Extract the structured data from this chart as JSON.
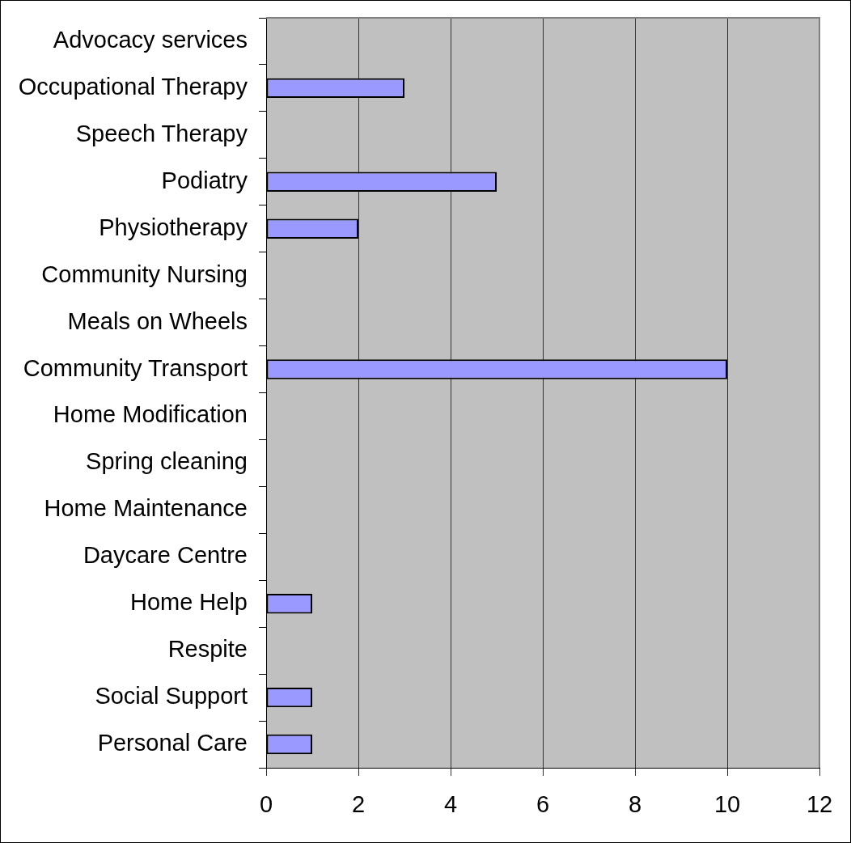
{
  "chart_data": {
    "type": "bar",
    "orientation": "horizontal",
    "categories": [
      "Advocacy services",
      "Occupational Therapy",
      "Speech Therapy",
      "Podiatry",
      "Physiotherapy",
      "Community Nursing",
      "Meals on Wheels",
      "Community Transport",
      "Home Modification",
      "Spring cleaning",
      "Home Maintenance",
      "Daycare Centre",
      "Home Help",
      "Respite",
      "Social Support",
      "Personal Care"
    ],
    "values": [
      0,
      3,
      0,
      5,
      2,
      0,
      0,
      10,
      0,
      0,
      0,
      0,
      1,
      0,
      1,
      1
    ],
    "color": "#9999ff",
    "xlim": [
      0,
      12
    ],
    "xticks": [
      0,
      2,
      4,
      6,
      8,
      10,
      12
    ],
    "grid": "x"
  }
}
